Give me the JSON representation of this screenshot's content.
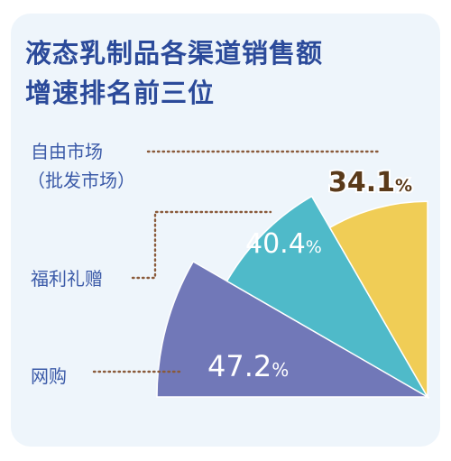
{
  "title_line1": "液态乳制品各渠道销售额",
  "title_line2": "增速排名前三位",
  "chart_data": {
    "type": "pie",
    "unit": "%",
    "categories": [
      "网购",
      "福利礼赠",
      "自由市场（批发市场）"
    ],
    "values": [
      47.2,
      40.4,
      34.1
    ],
    "value_labels": [
      "47.2%",
      "40.4%",
      "34.1%"
    ],
    "label_lines": [
      [
        "网购"
      ],
      [
        "福利礼赠"
      ],
      [
        "自由市场",
        "（批发市场）"
      ]
    ],
    "colors": [
      "#7178b8",
      "#4fbac9",
      "#f0cd56"
    ]
  }
}
